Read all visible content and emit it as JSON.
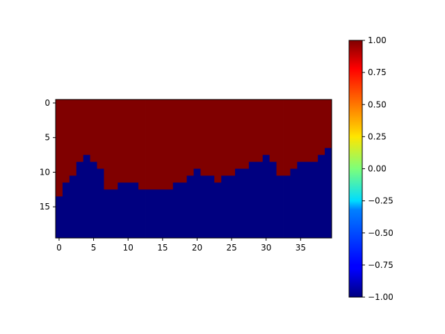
{
  "chart_data": {
    "type": "heatmap",
    "title": "",
    "xlabel": "",
    "ylabel": "",
    "cols": 40,
    "rows": 20,
    "column_boundary_rows": [
      14,
      12,
      11,
      9,
      8,
      9,
      10,
      13,
      13,
      12,
      12,
      12,
      13,
      13,
      13,
      13,
      13,
      12,
      12,
      11,
      10,
      11,
      11,
      12,
      11,
      11,
      10,
      10,
      9,
      9,
      8,
      9,
      11,
      11,
      10,
      9,
      9,
      9,
      8,
      7
    ],
    "values_note": "",
    "high_value": 1.0,
    "low_value": -1.0,
    "xticks": [
      0,
      5,
      10,
      15,
      20,
      25,
      30,
      35
    ],
    "xtick_labels": [
      "0",
      "5",
      "10",
      "15",
      "20",
      "25",
      "30",
      "35"
    ],
    "yticks": [
      0,
      5,
      10,
      15
    ],
    "ytick_labels": [
      "0",
      "5",
      "10",
      "15"
    ],
    "colormap": "jet",
    "colors": {
      "high": "#800000",
      "low": "#000080"
    },
    "colorbar": {
      "vmin": -1.0,
      "vmax": 1.0,
      "ticks": [
        -1.0,
        -0.75,
        -0.5,
        -0.25,
        0.0,
        0.25,
        0.5,
        0.75,
        1.0
      ],
      "tick_labels": [
        "−1.00",
        "−0.75",
        "−0.50",
        "−0.25",
        "0.00",
        "0.25",
        "0.50",
        "0.75",
        "1.00"
      ]
    }
  }
}
